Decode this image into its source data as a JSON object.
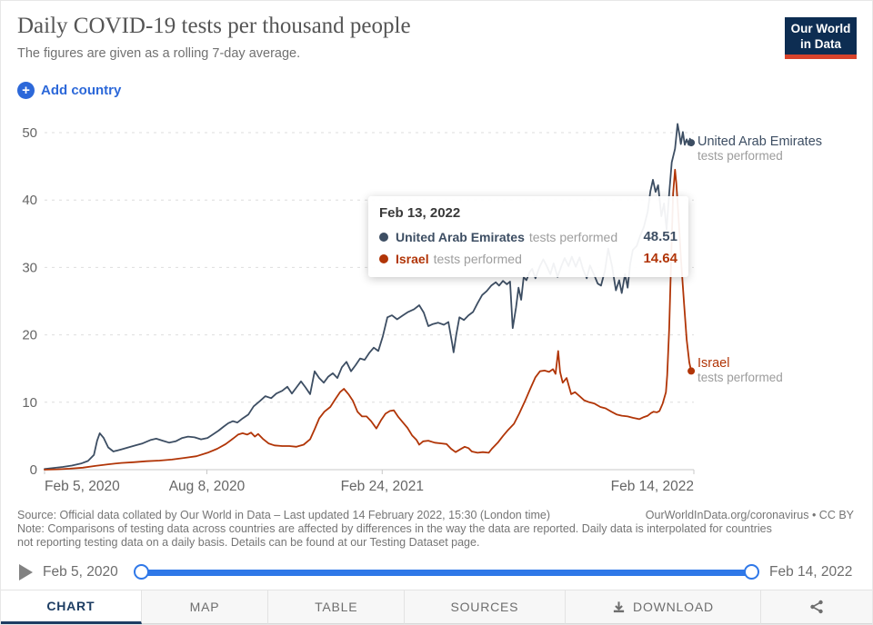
{
  "header": {
    "title": "Daily COVID-19 tests per thousand people",
    "subtitle": "The figures are given as a rolling 7-day average.",
    "logo": {
      "line1": "Our World",
      "line2": "in Data"
    },
    "add_country_label": "Add country",
    "plus_glyph": "+"
  },
  "colors": {
    "uae_line": "#3d4e63",
    "israel_line": "#b13507",
    "accent_blue": "#2c68d9",
    "slider_blue": "#2f78e8",
    "logo_navy": "#0d2d52",
    "logo_red": "#d8432b",
    "active_tab_navy": "#1d3d63"
  },
  "chart_data": {
    "type": "line",
    "title": "Daily COVID-19 tests per thousand people",
    "subtitle": "The figures are given as a rolling 7-day average.",
    "x_domain": [
      "Feb 5, 2020",
      "Feb 14, 2022"
    ],
    "ylim": [
      0,
      50
    ],
    "y_ticks": [
      0,
      10,
      20,
      30,
      40,
      50
    ],
    "x_ticks": [
      {
        "label": "Feb 5, 2020",
        "pos": 0
      },
      {
        "label": "Aug 8, 2020",
        "pos": 25
      },
      {
        "label": "Feb 24, 2021",
        "pos": 52
      },
      {
        "label": "Feb 14, 2022",
        "pos": 100
      }
    ],
    "grid": "horizontal-dashed",
    "legend_position": "end-of-line-labels",
    "series": [
      {
        "name": "United Arab Emirates",
        "unit": "tests performed",
        "color": "#3d4e63",
        "end_value": 48.51,
        "points": [
          [
            0,
            0.1
          ],
          [
            1.4,
            0.25
          ],
          [
            2.8,
            0.4
          ],
          [
            4.2,
            0.6
          ],
          [
            5.6,
            0.9
          ],
          [
            6.7,
            1.3
          ],
          [
            7.6,
            2.2
          ],
          [
            8.1,
            4.3
          ],
          [
            8.5,
            5.4
          ],
          [
            9.1,
            4.7
          ],
          [
            9.8,
            3.3
          ],
          [
            10.6,
            2.7
          ],
          [
            11.8,
            3
          ],
          [
            12.9,
            3.3
          ],
          [
            14,
            3.6
          ],
          [
            15.1,
            3.9
          ],
          [
            16.3,
            4.4
          ],
          [
            17.2,
            4.6
          ],
          [
            18.2,
            4.3
          ],
          [
            19.2,
            4
          ],
          [
            20.2,
            4.2
          ],
          [
            21.2,
            4.7
          ],
          [
            22.1,
            4.9
          ],
          [
            23.1,
            4.8
          ],
          [
            24.1,
            4.5
          ],
          [
            25.1,
            4.7
          ],
          [
            25.9,
            5.2
          ],
          [
            26.8,
            5.8
          ],
          [
            27.6,
            6.4
          ],
          [
            28.3,
            6.9
          ],
          [
            29,
            7.2
          ],
          [
            29.7,
            7
          ],
          [
            30.5,
            7.6
          ],
          [
            31.4,
            8.2
          ],
          [
            32.2,
            9.4
          ],
          [
            33.2,
            10.2
          ],
          [
            34,
            10.9
          ],
          [
            34.9,
            10.6
          ],
          [
            35.7,
            11.3
          ],
          [
            36.6,
            11.7
          ],
          [
            37.4,
            12.3
          ],
          [
            38.1,
            11.3
          ],
          [
            38.8,
            12.2
          ],
          [
            39.5,
            13.1
          ],
          [
            40.2,
            12.2
          ],
          [
            40.9,
            11.2
          ],
          [
            41.6,
            14.6
          ],
          [
            42.3,
            13.6
          ],
          [
            43,
            12.9
          ],
          [
            43.7,
            13.8
          ],
          [
            44.4,
            14.3
          ],
          [
            45.1,
            13.6
          ],
          [
            45.8,
            15.2
          ],
          [
            46.5,
            16
          ],
          [
            47.2,
            14.6
          ],
          [
            47.9,
            15.5
          ],
          [
            48.6,
            16.5
          ],
          [
            49.3,
            16.3
          ],
          [
            50,
            17.3
          ],
          [
            50.7,
            18.1
          ],
          [
            51.4,
            17.6
          ],
          [
            52.1,
            19.8
          ],
          [
            52.8,
            22.6
          ],
          [
            53.5,
            22.9
          ],
          [
            54.3,
            22.3
          ],
          [
            55.2,
            22.9
          ],
          [
            56,
            23.4
          ],
          [
            56.9,
            23.8
          ],
          [
            57.7,
            24.4
          ],
          [
            58.4,
            23.3
          ],
          [
            59.1,
            21.3
          ],
          [
            59.8,
            21.6
          ],
          [
            60.6,
            21.8
          ],
          [
            61.5,
            21.5
          ],
          [
            62.2,
            21.9
          ],
          [
            62.8,
            18.6
          ],
          [
            63,
            17.4
          ],
          [
            63.4,
            20
          ],
          [
            63.9,
            22.6
          ],
          [
            64.6,
            22.2
          ],
          [
            65.3,
            22.9
          ],
          [
            66,
            23.4
          ],
          [
            66.7,
            24.7
          ],
          [
            67.4,
            25.9
          ],
          [
            68.1,
            26.5
          ],
          [
            68.8,
            27.3
          ],
          [
            69.5,
            27.8
          ],
          [
            70,
            27.3
          ],
          [
            70.6,
            28
          ],
          [
            71.2,
            27.5
          ],
          [
            71.7,
            27.9
          ],
          [
            72.1,
            21
          ],
          [
            72.6,
            24
          ],
          [
            73,
            27
          ],
          [
            73.4,
            25.2
          ],
          [
            73.8,
            28.6
          ],
          [
            74.2,
            28.1
          ],
          [
            74.7,
            29.3
          ],
          [
            75.1,
            29.8
          ],
          [
            75.6,
            28.4
          ],
          [
            76.2,
            30
          ],
          [
            76.8,
            31.2
          ],
          [
            77.3,
            30.3
          ],
          [
            77.9,
            29
          ],
          [
            78.4,
            30.6
          ],
          [
            79,
            28.6
          ],
          [
            79.6,
            30.2
          ],
          [
            80.1,
            31.4
          ],
          [
            80.7,
            30.2
          ],
          [
            81.2,
            31.6
          ],
          [
            81.8,
            30.1
          ],
          [
            82.4,
            31.5
          ],
          [
            82.9,
            29.8
          ],
          [
            83.5,
            28.4
          ],
          [
            84,
            30.3
          ],
          [
            84.6,
            29
          ],
          [
            85.2,
            27.6
          ],
          [
            85.7,
            27.3
          ],
          [
            86.3,
            29.5
          ],
          [
            86.8,
            32.8
          ],
          [
            87.4,
            30.2
          ],
          [
            88,
            26.6
          ],
          [
            88.5,
            28.1
          ],
          [
            88.9,
            26.2
          ],
          [
            89.4,
            29
          ],
          [
            89.8,
            27
          ],
          [
            90.2,
            30.5
          ],
          [
            90.6,
            32.6
          ],
          [
            91.2,
            33.2
          ],
          [
            91.7,
            34.6
          ],
          [
            92.3,
            36
          ],
          [
            92.9,
            38.3
          ],
          [
            93.3,
            41.3
          ],
          [
            93.7,
            43
          ],
          [
            94.1,
            41.2
          ],
          [
            94.5,
            42.2
          ],
          [
            95,
            37.6
          ],
          [
            95.4,
            39.5
          ],
          [
            95.8,
            35.6
          ],
          [
            96.2,
            41
          ],
          [
            96.6,
            45.6
          ],
          [
            97.1,
            47.6
          ],
          [
            97.5,
            51.3
          ],
          [
            97.8,
            49.6
          ],
          [
            98,
            48.3
          ],
          [
            98.3,
            50.1
          ],
          [
            98.6,
            48.2
          ],
          [
            98.9,
            49
          ],
          [
            99.2,
            48.2
          ],
          [
            99.4,
            49.1
          ],
          [
            99.6,
            48.51
          ]
        ]
      },
      {
        "name": "Israel",
        "unit": "tests performed",
        "color": "#b13507",
        "end_value": 14.64,
        "points": [
          [
            0,
            0
          ],
          [
            2,
            0.05
          ],
          [
            3.9,
            0.15
          ],
          [
            5.9,
            0.3
          ],
          [
            7.8,
            0.55
          ],
          [
            9.8,
            0.8
          ],
          [
            11.8,
            1
          ],
          [
            13.7,
            1.1
          ],
          [
            15.7,
            1.25
          ],
          [
            17.7,
            1.35
          ],
          [
            19.6,
            1.5
          ],
          [
            21.6,
            1.75
          ],
          [
            23.4,
            2
          ],
          [
            25.1,
            2.5
          ],
          [
            26.6,
            3.1
          ],
          [
            27.9,
            3.8
          ],
          [
            29,
            4.6
          ],
          [
            29.8,
            5.2
          ],
          [
            30.5,
            5.4
          ],
          [
            31.2,
            5.2
          ],
          [
            31.8,
            5.5
          ],
          [
            32.4,
            4.9
          ],
          [
            32.9,
            5.3
          ],
          [
            33.6,
            4.6
          ],
          [
            34.5,
            3.9
          ],
          [
            35.4,
            3.6
          ],
          [
            36.6,
            3.5
          ],
          [
            37.7,
            3.5
          ],
          [
            38.8,
            3.4
          ],
          [
            39.9,
            3.7
          ],
          [
            40.9,
            4.5
          ],
          [
            41.6,
            6
          ],
          [
            42.3,
            7.6
          ],
          [
            43.1,
            8.6
          ],
          [
            44,
            9.3
          ],
          [
            44.8,
            10.5
          ],
          [
            45.5,
            11.5
          ],
          [
            46.1,
            12
          ],
          [
            46.8,
            11.2
          ],
          [
            47.5,
            10.2
          ],
          [
            48.2,
            8.6
          ],
          [
            48.9,
            7.9
          ],
          [
            49.6,
            7.9
          ],
          [
            50.3,
            7.2
          ],
          [
            51.1,
            6.1
          ],
          [
            51.8,
            7.3
          ],
          [
            52.5,
            8.3
          ],
          [
            53.2,
            8.7
          ],
          [
            53.8,
            8.8
          ],
          [
            54.5,
            7.8
          ],
          [
            55.2,
            7
          ],
          [
            55.9,
            6.2
          ],
          [
            56.6,
            5.1
          ],
          [
            57.3,
            4.4
          ],
          [
            57.7,
            3.7
          ],
          [
            58.3,
            4.2
          ],
          [
            59.1,
            4.3
          ],
          [
            60.1,
            4
          ],
          [
            61.1,
            3.9
          ],
          [
            61.9,
            3.8
          ],
          [
            62.6,
            3.1
          ],
          [
            63.3,
            2.6
          ],
          [
            64,
            3
          ],
          [
            64.7,
            3.4
          ],
          [
            65.3,
            3.2
          ],
          [
            65.8,
            2.7
          ],
          [
            66.7,
            2.5
          ],
          [
            67.5,
            2.6
          ],
          [
            68.4,
            2.5
          ],
          [
            68.9,
            3.1
          ],
          [
            69.8,
            4
          ],
          [
            70.6,
            5
          ],
          [
            71.4,
            5.9
          ],
          [
            72.3,
            6.8
          ],
          [
            73.1,
            8.3
          ],
          [
            74,
            10.2
          ],
          [
            74.8,
            12
          ],
          [
            75.6,
            13.7
          ],
          [
            76.3,
            14.6
          ],
          [
            77,
            14.7
          ],
          [
            77.7,
            14.5
          ],
          [
            78.3,
            14.9
          ],
          [
            78.7,
            14.2
          ],
          [
            79.1,
            17.6
          ],
          [
            79.4,
            14.5
          ],
          [
            79.8,
            12.9
          ],
          [
            80.4,
            13.6
          ],
          [
            81.1,
            11.2
          ],
          [
            81.7,
            11.5
          ],
          [
            82.4,
            10.9
          ],
          [
            83.1,
            10.3
          ],
          [
            83.9,
            10
          ],
          [
            84.7,
            9.8
          ],
          [
            85.6,
            9.3
          ],
          [
            86.4,
            9.1
          ],
          [
            87.3,
            8.6
          ],
          [
            88.1,
            8.2
          ],
          [
            88.9,
            8
          ],
          [
            89.8,
            7.9
          ],
          [
            90.6,
            7.7
          ],
          [
            91.6,
            7.5
          ],
          [
            92.3,
            7.8
          ],
          [
            92.9,
            8
          ],
          [
            93.4,
            8.4
          ],
          [
            93.8,
            8.6
          ],
          [
            94.3,
            8.5
          ],
          [
            94.7,
            8.7
          ],
          [
            95.2,
            9.8
          ],
          [
            95.7,
            11.5
          ],
          [
            95.9,
            14
          ],
          [
            96.2,
            21
          ],
          [
            96.5,
            31
          ],
          [
            96.8,
            41
          ],
          [
            97.1,
            44.5
          ],
          [
            97.3,
            42.5
          ],
          [
            97.6,
            38
          ],
          [
            98,
            31.5
          ],
          [
            98.5,
            24.5
          ],
          [
            98.9,
            19.3
          ],
          [
            99.3,
            15.9
          ],
          [
            99.6,
            14.64
          ]
        ]
      }
    ]
  },
  "tooltip": {
    "date": "Feb 13, 2022",
    "rows": [
      {
        "name": "United Arab Emirates",
        "unit": "tests performed",
        "value": "48.51",
        "color": "#3d4e63"
      },
      {
        "name": "Israel",
        "unit": "tests performed",
        "value": "14.64",
        "color": "#b13507"
      }
    ]
  },
  "footer": {
    "source": "Source: Official data collated by Our World in Data – Last updated 14 February 2022, 15:30 (London time)",
    "license": "OurWorldInData.org/coronavirus • CC BY",
    "note_line1": "Note: Comparisons of testing data across countries are affected by differences in the way the data are reported. Daily data is interpolated for countries",
    "note_line2": "not reporting testing data on a daily basis. Details can be found at our Testing Dataset page."
  },
  "timeline": {
    "start": "Feb 5, 2020",
    "end": "Feb 14, 2022"
  },
  "tabs": [
    {
      "label": "CHART",
      "active": true
    },
    {
      "label": "MAP",
      "active": false
    },
    {
      "label": "TABLE",
      "active": false
    },
    {
      "label": "SOURCES",
      "active": false
    },
    {
      "label": "DOWNLOAD",
      "active": false,
      "icon": "download-icon"
    },
    {
      "label": "",
      "active": false,
      "icon": "share-icon"
    }
  ]
}
